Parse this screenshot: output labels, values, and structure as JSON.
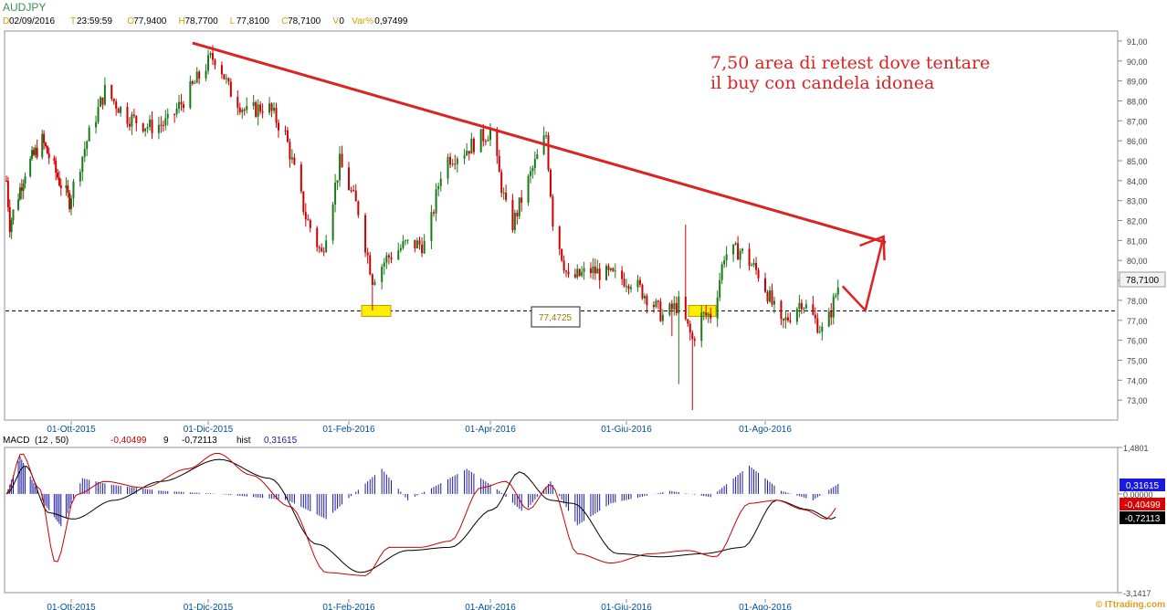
{
  "header": {
    "symbol": "AUDJPY",
    "info": [
      {
        "key": "D",
        "value": "02/09/2016"
      },
      {
        "key": "T",
        "value": "23:59:59"
      },
      {
        "key": "O",
        "value": "77,9400"
      },
      {
        "key": "H",
        "value": "78,7700"
      },
      {
        "key": "L",
        "value": "77,8100"
      },
      {
        "key": "C",
        "value": "78,7100"
      },
      {
        "key": "V",
        "value": "0"
      },
      {
        "key": "Var%",
        "value": "0,97499"
      }
    ]
  },
  "macd_header": {
    "name": "MACD",
    "params": "(12 , 50)",
    "macd_value": "-0,40499",
    "signal_period": "9",
    "signal_value": "-0,72113",
    "hist_label": "hist",
    "hist_value": "0,31615"
  },
  "annotation": {
    "line1": "7,50 area di retest dove tentare",
    "line2": "il buy con candela idonea",
    "support_label": "77,4725"
  },
  "watermark": "© ITtrading.com",
  "colors": {
    "up": "#1a7a1a",
    "down": "#cc0000",
    "trendline": "#dd2222",
    "highlight": "#ffee00",
    "hist": "#1a1aa0",
    "macd_line": "#cc0000",
    "signal_line": "#000000",
    "tag_price": "#f2f2f2",
    "tag_hist": "#1a1adc",
    "tag_macd": "#dd0000",
    "tag_signal": "#000000"
  },
  "chart_data": [
    {
      "type": "candlestick",
      "title": "AUDJPY",
      "x_ticks": [
        "01-Ott-2015",
        "01-Dic-2015",
        "01-Feb-2016",
        "01-Apr-2016",
        "01-Giu-2016",
        "01-Ago-2016"
      ],
      "y_ticks": [
        "91,00",
        "90,00",
        "89,00",
        "88,00",
        "87,00",
        "86,00",
        "85,00",
        "84,00",
        "83,00",
        "82,00",
        "81,00",
        "80,00",
        "79,00",
        "78,00",
        "77,00",
        "76,00",
        "75,00",
        "74,00",
        "73,00"
      ],
      "ylim": [
        72,
        91.5
      ],
      "last_price": "78,7100",
      "support_level": 77.4725,
      "trendline": [
        {
          "date": "2015-11-24",
          "value": 90.9
        },
        {
          "date": "2016-09-23",
          "value": 80.9
        }
      ],
      "projection": [
        78.71,
        77.5,
        81.2
      ],
      "close_path": [
        {
          "date": "2015-08-24",
          "value": 84.0
        },
        {
          "date": "2015-08-26",
          "value": 81.8
        },
        {
          "date": "2015-09-04",
          "value": 84.5
        },
        {
          "date": "2015-09-14",
          "value": 86.0
        },
        {
          "date": "2015-09-24",
          "value": 84.0
        },
        {
          "date": "2015-09-30",
          "value": 83.0
        },
        {
          "date": "2015-10-08",
          "value": 86.0
        },
        {
          "date": "2015-10-16",
          "value": 88.5
        },
        {
          "date": "2015-10-26",
          "value": 87.2
        },
        {
          "date": "2015-11-05",
          "value": 86.7
        },
        {
          "date": "2015-11-13",
          "value": 86.9
        },
        {
          "date": "2015-11-24",
          "value": 88.7
        },
        {
          "date": "2015-12-02",
          "value": 90.1
        },
        {
          "date": "2015-12-05",
          "value": 90.2
        },
        {
          "date": "2015-12-10",
          "value": 88.6
        },
        {
          "date": "2015-12-18",
          "value": 87.4
        },
        {
          "date": "2015-12-27",
          "value": 87.8
        },
        {
          "date": "2016-01-04",
          "value": 86.3
        },
        {
          "date": "2016-01-13",
          "value": 82.2
        },
        {
          "date": "2016-01-20",
          "value": 80.3
        },
        {
          "date": "2016-01-28",
          "value": 84.9
        },
        {
          "date": "2016-02-05",
          "value": 82.5
        },
        {
          "date": "2016-02-11",
          "value": 79.1
        },
        {
          "date": "2016-02-17",
          "value": 80.1
        },
        {
          "date": "2016-02-25",
          "value": 80.8
        },
        {
          "date": "2016-03-05",
          "value": 80.8
        },
        {
          "date": "2016-03-12",
          "value": 85.0
        },
        {
          "date": "2016-03-21",
          "value": 85.5
        },
        {
          "date": "2016-04-01",
          "value": 86.5
        },
        {
          "date": "2016-04-10",
          "value": 81.5
        },
        {
          "date": "2016-04-18",
          "value": 84.0
        },
        {
          "date": "2016-04-26",
          "value": 86.3
        },
        {
          "date": "2016-04-29",
          "value": 82.0
        },
        {
          "date": "2016-05-06",
          "value": 79.0
        },
        {
          "date": "2016-05-16",
          "value": 79.5
        },
        {
          "date": "2016-05-26",
          "value": 79.2
        },
        {
          "date": "2016-06-03",
          "value": 79.0
        },
        {
          "date": "2016-06-11",
          "value": 78.1
        },
        {
          "date": "2016-06-17",
          "value": 77.2
        },
        {
          "date": "2016-06-24",
          "value": 77.8
        },
        {
          "date": "2016-06-30",
          "value": 76.0
        },
        {
          "date": "2016-07-04",
          "value": 77.2
        },
        {
          "date": "2016-07-09",
          "value": 77.3
        },
        {
          "date": "2016-07-14",
          "value": 80.3
        },
        {
          "date": "2016-07-21",
          "value": 80.5
        },
        {
          "date": "2016-07-30",
          "value": 79.2
        },
        {
          "date": "2016-08-08",
          "value": 76.7
        },
        {
          "date": "2016-08-17",
          "value": 78.0
        },
        {
          "date": "2016-08-27",
          "value": 76.3
        },
        {
          "date": "2016-09-02",
          "value": 78.71
        }
      ]
    },
    {
      "type": "line",
      "title": "MACD",
      "y_ticks": [
        "1,4801",
        "0,00000",
        "-3,1417"
      ],
      "ylim": [
        -3.1417,
        1.4801
      ],
      "series": [
        {
          "name": "MACD",
          "current": -0.40499,
          "points": [
            {
              "date": "2015-08-24",
              "value": 0.0
            },
            {
              "date": "2015-09-02",
              "value": 1.3
            },
            {
              "date": "2015-09-12",
              "value": 0.2
            },
            {
              "date": "2015-09-22",
              "value": -2.2
            },
            {
              "date": "2015-10-04",
              "value": 0.0
            },
            {
              "date": "2015-10-16",
              "value": 0.4
            },
            {
              "date": "2015-11-02",
              "value": 0.2
            },
            {
              "date": "2015-11-22",
              "value": 0.8
            },
            {
              "date": "2015-12-05",
              "value": 1.3
            },
            {
              "date": "2015-12-20",
              "value": 0.6
            },
            {
              "date": "2016-01-06",
              "value": -0.4
            },
            {
              "date": "2016-01-22",
              "value": -2.5
            },
            {
              "date": "2016-02-08",
              "value": -2.6
            },
            {
              "date": "2016-02-18",
              "value": -1.7
            },
            {
              "date": "2016-03-02",
              "value": -1.7
            },
            {
              "date": "2016-03-15",
              "value": -1.5
            },
            {
              "date": "2016-03-28",
              "value": 0.2
            },
            {
              "date": "2016-04-08",
              "value": 0.4
            },
            {
              "date": "2016-04-18",
              "value": -0.5
            },
            {
              "date": "2016-04-28",
              "value": 0.3
            },
            {
              "date": "2016-05-10",
              "value": -1.9
            },
            {
              "date": "2016-05-25",
              "value": -2.2
            },
            {
              "date": "2016-06-12",
              "value": -1.9
            },
            {
              "date": "2016-06-28",
              "value": -1.8
            },
            {
              "date": "2016-07-10",
              "value": -2.0
            },
            {
              "date": "2016-07-25",
              "value": -0.3
            },
            {
              "date": "2016-08-06",
              "value": -0.2
            },
            {
              "date": "2016-08-18",
              "value": -0.5
            },
            {
              "date": "2016-08-28",
              "value": -0.8
            },
            {
              "date": "2016-09-02",
              "value": -0.405
            }
          ]
        },
        {
          "name": "Signal",
          "current": -0.72113,
          "points": [
            {
              "date": "2015-08-24",
              "value": 0.0
            },
            {
              "date": "2015-09-04",
              "value": 0.9
            },
            {
              "date": "2015-09-18",
              "value": -0.6
            },
            {
              "date": "2015-10-02",
              "value": -0.8
            },
            {
              "date": "2015-10-20",
              "value": -0.2
            },
            {
              "date": "2015-11-10",
              "value": 0.4
            },
            {
              "date": "2015-12-06",
              "value": 1.1
            },
            {
              "date": "2015-12-28",
              "value": 0.5
            },
            {
              "date": "2016-01-18",
              "value": -1.6
            },
            {
              "date": "2016-02-06",
              "value": -2.5
            },
            {
              "date": "2016-02-26",
              "value": -1.8
            },
            {
              "date": "2016-03-15",
              "value": -1.7
            },
            {
              "date": "2016-04-02",
              "value": -0.5
            },
            {
              "date": "2016-04-14",
              "value": 0.7
            },
            {
              "date": "2016-04-28",
              "value": -0.2
            },
            {
              "date": "2016-05-08",
              "value": -0.3
            },
            {
              "date": "2016-05-28",
              "value": -1.9
            },
            {
              "date": "2016-06-16",
              "value": -2.0
            },
            {
              "date": "2016-07-05",
              "value": -1.9
            },
            {
              "date": "2016-07-22",
              "value": -1.7
            },
            {
              "date": "2016-08-06",
              "value": -0.2
            },
            {
              "date": "2016-08-20",
              "value": -0.5
            },
            {
              "date": "2016-08-30",
              "value": -0.8
            },
            {
              "date": "2016-09-02",
              "value": -0.72
            }
          ]
        }
      ],
      "histogram": {
        "name": "hist",
        "current": 0.31615,
        "bars": [
          {
            "date": "2015-08-24",
            "value": 0.0
          },
          {
            "date": "2015-09-01",
            "value": 1.2
          },
          {
            "date": "2015-09-15",
            "value": -0.3
          },
          {
            "date": "2015-09-26",
            "value": -1.1
          },
          {
            "date": "2015-10-06",
            "value": 0.5
          },
          {
            "date": "2015-10-18",
            "value": 0.3
          },
          {
            "date": "2015-11-10",
            "value": 0.1
          },
          {
            "date": "2015-12-06",
            "value": 0.0
          },
          {
            "date": "2016-01-05",
            "value": -0.2
          },
          {
            "date": "2016-01-22",
            "value": -0.8
          },
          {
            "date": "2016-02-06",
            "value": 0.2
          },
          {
            "date": "2016-02-15",
            "value": 0.8
          },
          {
            "date": "2016-02-26",
            "value": -0.2
          },
          {
            "date": "2016-03-10",
            "value": 0.3
          },
          {
            "date": "2016-03-22",
            "value": 0.8
          },
          {
            "date": "2016-04-05",
            "value": 0.1
          },
          {
            "date": "2016-04-16",
            "value": -0.6
          },
          {
            "date": "2016-04-28",
            "value": 0.4
          },
          {
            "date": "2016-05-10",
            "value": -1.0
          },
          {
            "date": "2016-05-25",
            "value": -0.3
          },
          {
            "date": "2016-06-20",
            "value": 0.1
          },
          {
            "date": "2016-07-08",
            "value": -0.1
          },
          {
            "date": "2016-07-25",
            "value": 0.9
          },
          {
            "date": "2016-08-08",
            "value": 0.1
          },
          {
            "date": "2016-08-22",
            "value": -0.2
          },
          {
            "date": "2016-09-02",
            "value": 0.316
          }
        ]
      }
    }
  ]
}
